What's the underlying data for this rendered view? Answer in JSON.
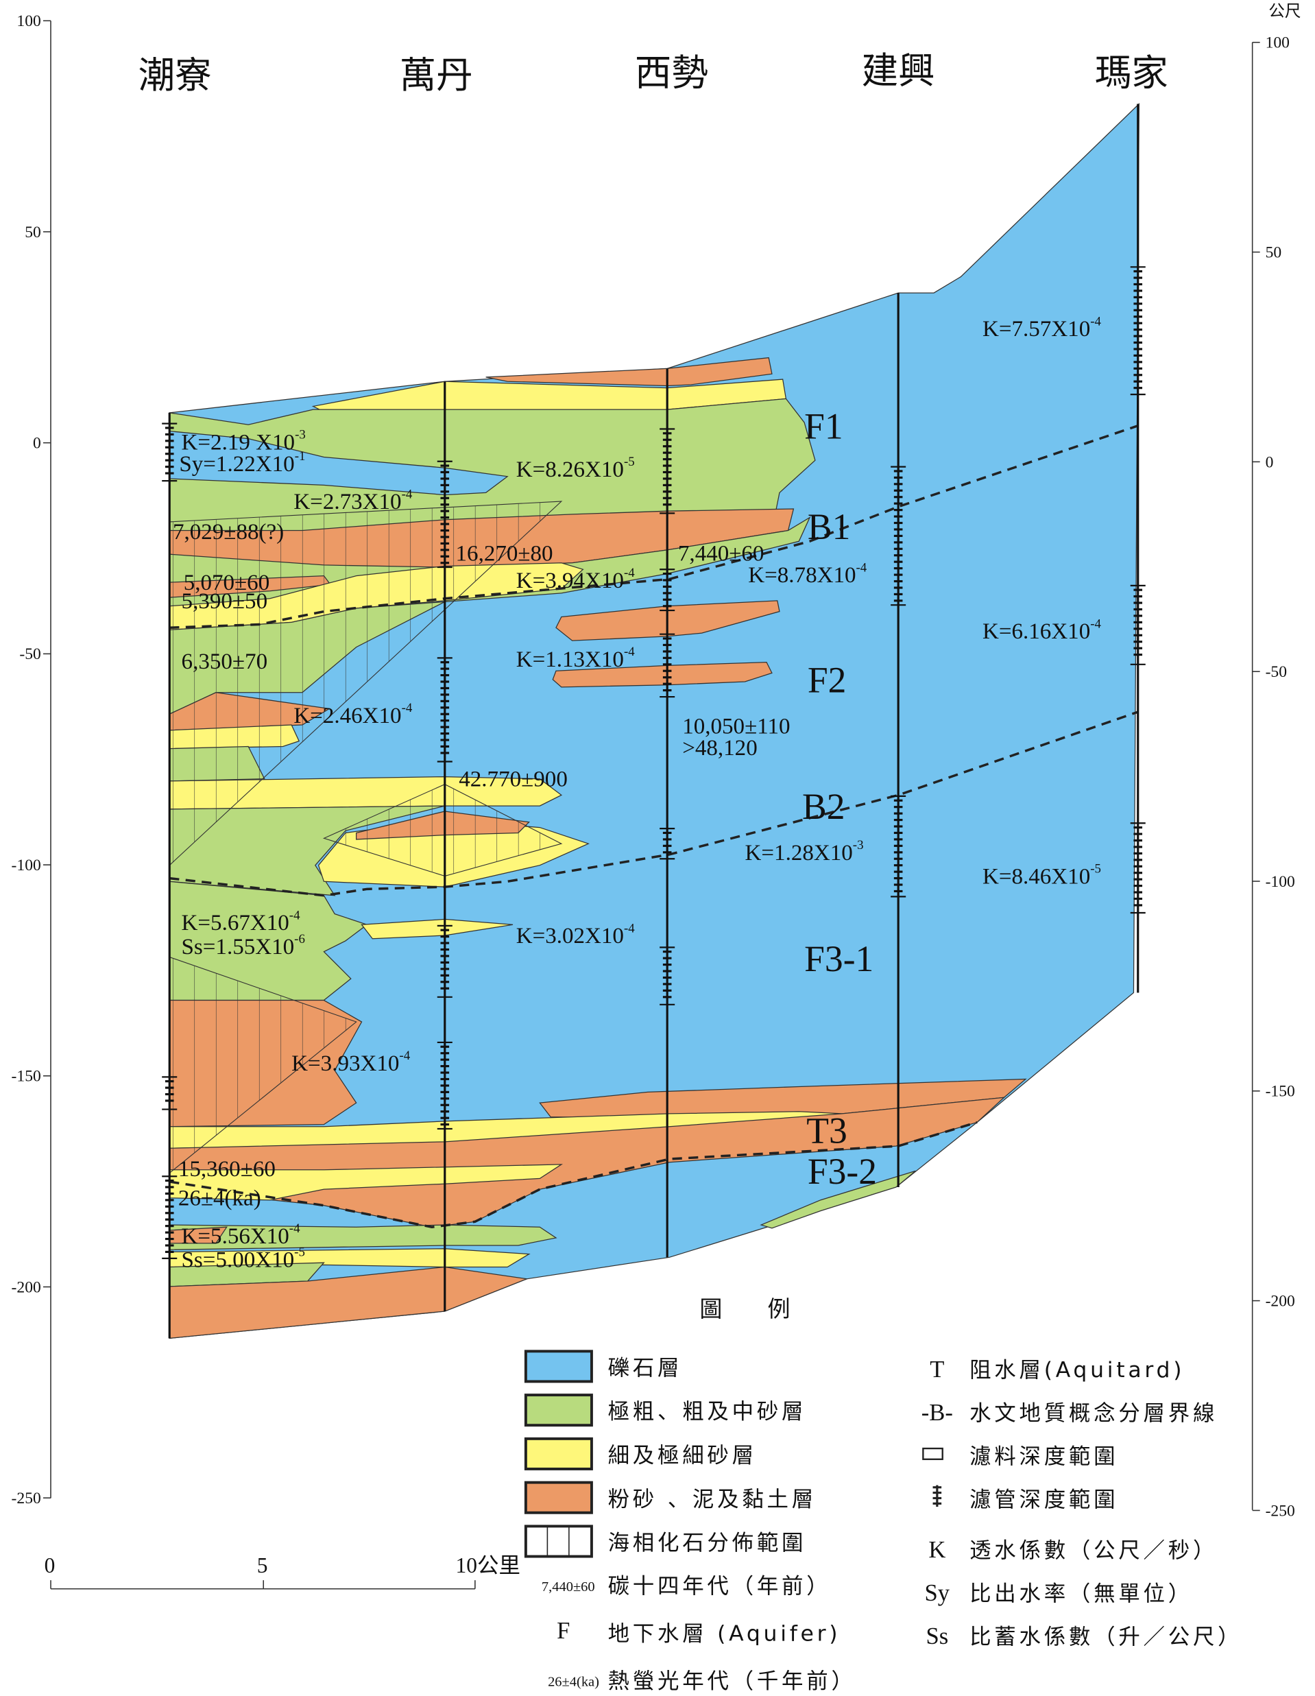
{
  "title_locations": [
    "潮寮",
    "萬丹",
    "西勢",
    "建興",
    "瑪家"
  ],
  "left_axis": {
    "ticks": [
      "100",
      "50",
      "0",
      "-50",
      "-100",
      "-150",
      "-200",
      "-250"
    ]
  },
  "right_axis": {
    "unit": "公尺",
    "ticks": [
      "100",
      "50",
      "0",
      "-50",
      "-100",
      "-150",
      "-200",
      "-250"
    ]
  },
  "scale_bar": {
    "ticks": [
      "0",
      "5",
      "10公里"
    ]
  },
  "units": [
    "F1",
    "B1",
    "F2",
    "B2",
    "F3-1",
    "T3",
    "F3-2"
  ],
  "annotations": {
    "chaoliao": [
      "K=2.19 X10",
      "-3",
      "Sy=1.22X10",
      "-1",
      "K=2.73X10",
      "-4",
      "7,029±88(?)",
      "5,070±60",
      "5,390±50",
      "6,350±70",
      "K=2.46X10",
      "-4",
      "K=5.67X10",
      "-4",
      "Ss=1.55X10",
      "-6",
      "K=3.93X10",
      "-4",
      "15,360±60",
      "26±4(ka)",
      "K=5.56X10",
      "-4",
      "Ss=5.00X10",
      "-5"
    ],
    "wandan": [
      "16,270±80",
      "42.770±900",
      "K=8.26X10",
      "-5",
      "K=3.94X10",
      "-4",
      "K=1.13X10",
      "-4",
      "K=3.02X10",
      "-4"
    ],
    "xishi": [
      "7,440±60",
      "10,050±110",
      ">48,120",
      "K=8.78X10",
      "-4",
      "K=1.28X10",
      "-3"
    ],
    "majia": [
      "K=7.57X10",
      "-4",
      "K=6.16X10",
      "-4",
      "K=8.46X10",
      "-5"
    ]
  },
  "legend": {
    "title": "圖　　例",
    "swatches": [
      {
        "label": "礫石層",
        "color": "#74c3ef"
      },
      {
        "label": "極粗、粗及中砂層",
        "color": "#b8db7e"
      },
      {
        "label": "細及極細砂層",
        "color": "#fef77a"
      },
      {
        "label": "粉砂 、泥及黏土層",
        "color": "#ec9a66"
      },
      {
        "label": "海相化石分佈範圍",
        "color": "#ffffff"
      }
    ],
    "left_text": [
      {
        "sym": "7,440±60",
        "label": "碳十四年代（年前）"
      },
      {
        "sym": "F",
        "label": "地下水層 (Aquifer)"
      },
      {
        "sym": "26±4(ka)",
        "label": "熱螢光年代（千年前）"
      }
    ],
    "right_text": [
      {
        "sym": "T",
        "label": "阻水層(Aquitard)"
      },
      {
        "sym": "-B-",
        "label": "水文地質概念分層界線"
      },
      {
        "sym": "",
        "label": "濾料深度範圍"
      },
      {
        "sym": "",
        "label": "濾管深度範圍"
      },
      {
        "sym": "K",
        "label": "透水係數（公尺／秒）"
      },
      {
        "sym": "Sy",
        "label": "比出水率（無單位）"
      },
      {
        "sym": "Ss",
        "label": "比蓄水係數（升／公尺）"
      }
    ]
  },
  "colors": {
    "gravel": "#74c3ef",
    "coarse_sand": "#b8db7e",
    "fine_sand": "#fef77a",
    "clay": "#ec9a66"
  }
}
